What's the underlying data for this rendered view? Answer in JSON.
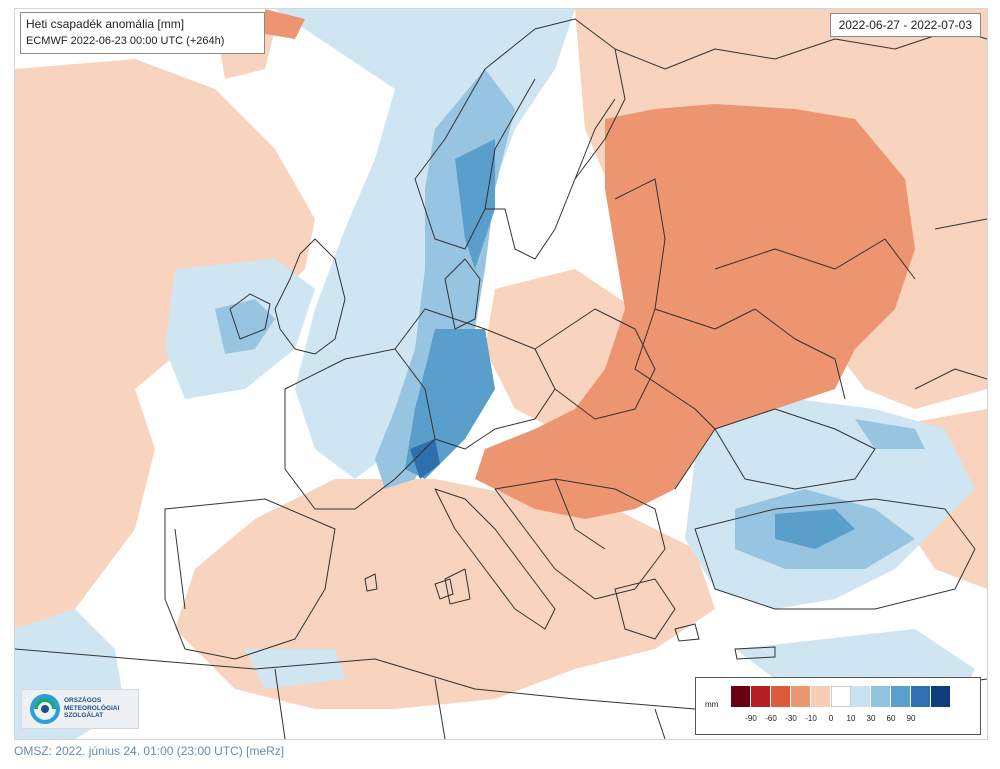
{
  "map": {
    "title": "Heti csapadék anomália [mm]",
    "subtitle": "ECMWF 2022-06-23 00:00 UTC (+264h)",
    "period": "2022-06-27 - 2022-07-03",
    "region": "Europe"
  },
  "legend": {
    "unit": "mm",
    "classes": [
      {
        "color": "#6a0010"
      },
      {
        "color": "#b41e24"
      },
      {
        "color": "#dd5a3c"
      },
      {
        "color": "#ed9672"
      },
      {
        "color": "#f8cdb5"
      },
      {
        "color": "#ffffff"
      },
      {
        "color": "#c8e2f0"
      },
      {
        "color": "#92c4e0"
      },
      {
        "color": "#5b9fcd"
      },
      {
        "color": "#2e70b0"
      },
      {
        "color": "#0e3d7c"
      }
    ],
    "ticks": [
      "-90",
      "-60",
      "-30",
      "-10",
      "0",
      "10",
      "30",
      "60",
      "90"
    ]
  },
  "logo": {
    "line1": "ORSZÁGOS",
    "line2": "METEOROLÓGIAI",
    "line3": "SZOLGÁLAT"
  },
  "footer": "OMSZ: 2022. június 24. 01:00 (23:00  UTC)  [meRz]"
}
